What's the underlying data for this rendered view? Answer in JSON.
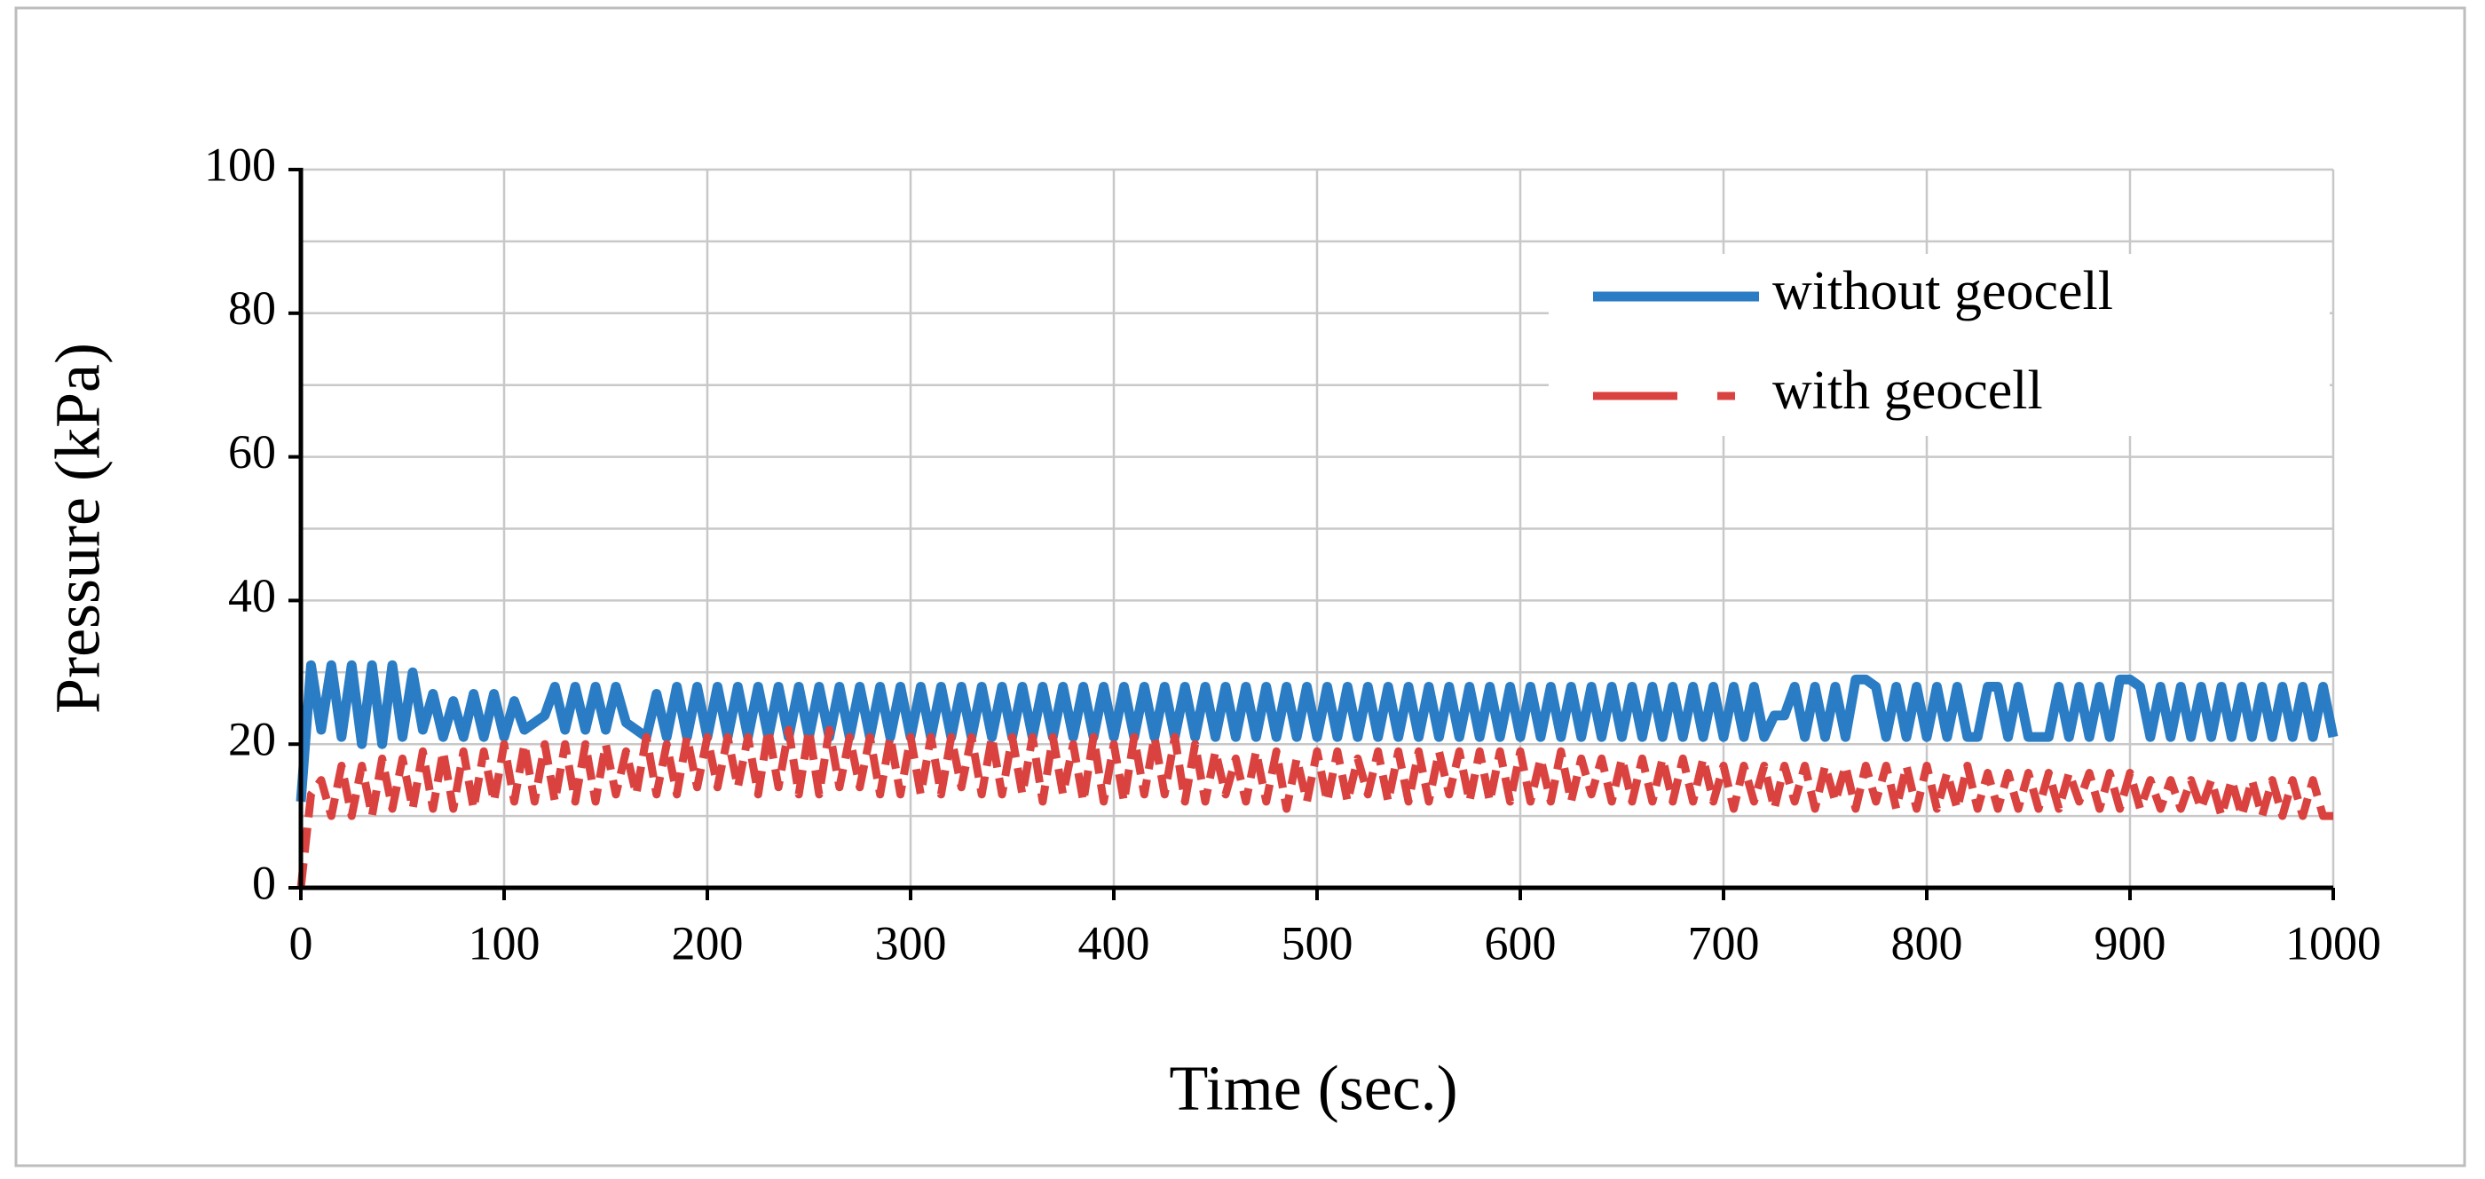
{
  "chart_data": {
    "type": "line",
    "x_label": "Time (sec.)",
    "y_label": "Pressure (kPa)",
    "xlim": [
      0,
      1000
    ],
    "xticks": [
      0,
      100,
      200,
      300,
      400,
      500,
      600,
      700,
      800,
      900,
      1000
    ],
    "ylim": [
      0,
      100
    ],
    "yticks": [
      0,
      20,
      40,
      60,
      80,
      100
    ],
    "yminor": [
      10,
      30,
      50,
      70,
      90
    ],
    "grid": true,
    "legend": "upper right",
    "x": [
      0,
      5,
      10,
      15,
      20,
      25,
      30,
      35,
      40,
      45,
      50,
      55,
      60,
      65,
      70,
      75,
      80,
      85,
      90,
      95,
      100,
      105,
      110,
      115,
      120,
      125,
      130,
      135,
      140,
      145,
      150,
      155,
      160,
      165,
      170,
      175,
      180,
      185,
      190,
      195,
      200,
      205,
      210,
      215,
      220,
      225,
      230,
      235,
      240,
      245,
      250,
      255,
      260,
      265,
      270,
      275,
      280,
      285,
      290,
      295,
      300,
      305,
      310,
      315,
      320,
      325,
      330,
      335,
      340,
      345,
      350,
      355,
      360,
      365,
      370,
      375,
      380,
      385,
      390,
      395,
      400,
      405,
      410,
      415,
      420,
      425,
      430,
      435,
      440,
      445,
      450,
      455,
      460,
      465,
      470,
      475,
      480,
      485,
      490,
      495,
      500,
      505,
      510,
      515,
      520,
      525,
      530,
      535,
      540,
      545,
      550,
      555,
      560,
      565,
      570,
      575,
      580,
      585,
      590,
      595,
      600,
      605,
      610,
      615,
      620,
      625,
      630,
      635,
      640,
      645,
      650,
      655,
      660,
      665,
      670,
      675,
      680,
      685,
      690,
      695,
      700,
      705,
      710,
      715,
      720,
      725,
      730,
      735,
      740,
      745,
      750,
      755,
      760,
      765,
      770,
      775,
      780,
      785,
      790,
      795,
      800,
      805,
      810,
      815,
      820,
      825,
      830,
      835,
      840,
      845,
      850,
      855,
      860,
      865,
      870,
      875,
      880,
      885,
      890,
      895,
      900,
      905,
      910,
      915,
      920,
      925,
      930,
      935,
      940,
      945,
      950,
      955,
      960,
      965,
      970,
      975,
      980,
      985,
      990,
      995,
      1000
    ],
    "series": [
      {
        "name": "without geocell",
        "color": "#2a7dc4",
        "dashed": false,
        "values": [
          12,
          31,
          22,
          31,
          21,
          31,
          20,
          31,
          20,
          31,
          21,
          30,
          22,
          27,
          21,
          26,
          21,
          27,
          21,
          27,
          21,
          26,
          22,
          23,
          24,
          28,
          22,
          28,
          22,
          28,
          22,
          28,
          23,
          22,
          21,
          27,
          21,
          28,
          21,
          28,
          21,
          28,
          21,
          28,
          21,
          28,
          21,
          28,
          21,
          28,
          21,
          28,
          21,
          28,
          21,
          28,
          21,
          28,
          21,
          28,
          21,
          28,
          21,
          28,
          21,
          28,
          21,
          28,
          21,
          28,
          21,
          28,
          21,
          28,
          21,
          28,
          21,
          28,
          21,
          28,
          21,
          28,
          21,
          28,
          21,
          28,
          21,
          28,
          21,
          28,
          21,
          28,
          21,
          28,
          21,
          28,
          21,
          28,
          21,
          28,
          21,
          28,
          21,
          28,
          21,
          28,
          21,
          28,
          21,
          28,
          21,
          28,
          21,
          28,
          21,
          28,
          21,
          28,
          21,
          28,
          21,
          28,
          21,
          28,
          21,
          28,
          21,
          28,
          21,
          28,
          21,
          28,
          21,
          28,
          21,
          28,
          21,
          28,
          21,
          28,
          21,
          28,
          21,
          28,
          21,
          24,
          24,
          28,
          21,
          28,
          21,
          28,
          21,
          29,
          29,
          28,
          21,
          28,
          21,
          28,
          21,
          28,
          21,
          28,
          21,
          21,
          28,
          28,
          21,
          28,
          21,
          21,
          21,
          28,
          21,
          28,
          21,
          28,
          21,
          29,
          29,
          28,
          21,
          28,
          21,
          28,
          21,
          28,
          21,
          28,
          21,
          28,
          21,
          28,
          21,
          28,
          21,
          28,
          21,
          28,
          21
        ]
      },
      {
        "name": "with geocell",
        "color": "#d9423f",
        "dashed": true,
        "values": [
          0,
          13,
          15,
          10,
          17,
          10,
          17,
          10,
          18,
          11,
          18,
          11,
          19,
          11,
          19,
          11,
          19,
          11,
          19,
          12,
          20,
          12,
          20,
          12,
          20,
          12,
          20,
          12,
          20,
          12,
          20,
          13,
          19,
          13,
          21,
          13,
          20,
          13,
          21,
          14,
          21,
          14,
          21,
          14,
          21,
          13,
          22,
          14,
          22,
          13,
          22,
          13,
          22,
          14,
          21,
          14,
          21,
          13,
          21,
          13,
          21,
          13,
          21,
          13,
          21,
          14,
          21,
          13,
          21,
          13,
          21,
          13,
          21,
          12,
          21,
          13,
          20,
          12,
          21,
          12,
          20,
          12,
          21,
          13,
          21,
          13,
          21,
          12,
          20,
          12,
          19,
          13,
          18,
          12,
          19,
          12,
          19,
          11,
          18,
          12,
          19,
          12,
          19,
          12,
          18,
          13,
          19,
          12,
          19,
          12,
          19,
          12,
          19,
          13,
          19,
          12,
          19,
          12,
          19,
          12,
          19,
          12,
          18,
          12,
          19,
          12,
          18,
          13,
          18,
          12,
          18,
          12,
          18,
          12,
          18,
          12,
          18,
          12,
          18,
          12,
          17,
          11,
          17,
          12,
          17,
          11,
          17,
          12,
          17,
          11,
          17,
          12,
          17,
          11,
          17,
          12,
          17,
          11,
          17,
          11,
          17,
          11,
          16,
          11,
          17,
          11,
          16,
          11,
          16,
          11,
          16,
          11,
          16,
          11,
          16,
          12,
          16,
          11,
          16,
          11,
          16,
          11,
          15,
          11,
          15,
          11,
          15,
          11,
          15,
          10,
          15,
          10,
          15,
          10,
          15,
          10,
          15,
          10,
          15,
          10,
          10
        ]
      }
    ]
  }
}
